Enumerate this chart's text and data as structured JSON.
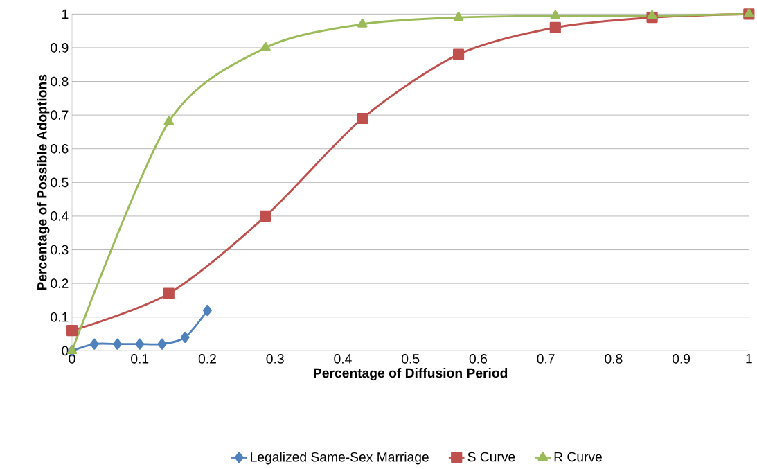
{
  "chart_data": {
    "type": "line",
    "xlabel": "Percentage of Diffusion Period",
    "ylabel": "Percentage of Possible Adoptions",
    "xlim": [
      0,
      1
    ],
    "ylim": [
      0,
      1
    ],
    "xticks": [
      0,
      0.1,
      0.2,
      0.3,
      0.4,
      0.5,
      0.6,
      0.7,
      0.8,
      0.9,
      1
    ],
    "yticks": [
      0,
      0.1,
      0.2,
      0.3,
      0.4,
      0.5,
      0.6,
      0.7,
      0.8,
      0.9,
      1
    ],
    "grid": "y",
    "legend": "bottom",
    "series": [
      {
        "name": "Legalized Same-Sex Marriage",
        "color": "#4f81bd",
        "marker": "diamond",
        "x": [
          0,
          0.033,
          0.067,
          0.1,
          0.133,
          0.167,
          0.2
        ],
        "values": [
          0,
          0.02,
          0.02,
          0.02,
          0.02,
          0.04,
          0.12
        ]
      },
      {
        "name": "S Curve",
        "color": "#c0504d",
        "marker": "square",
        "x": [
          0,
          0.143,
          0.286,
          0.429,
          0.571,
          0.714,
          0.857,
          1
        ],
        "values": [
          0.06,
          0.17,
          0.4,
          0.69,
          0.88,
          0.96,
          0.99,
          1.0
        ]
      },
      {
        "name": "R Curve",
        "color": "#9bbb59",
        "marker": "triangle",
        "x": [
          0,
          0.143,
          0.286,
          0.429,
          0.571,
          0.714,
          0.857,
          1
        ],
        "values": [
          0,
          0.68,
          0.9,
          0.97,
          0.99,
          0.995,
          0.995,
          1.0
        ]
      }
    ]
  }
}
